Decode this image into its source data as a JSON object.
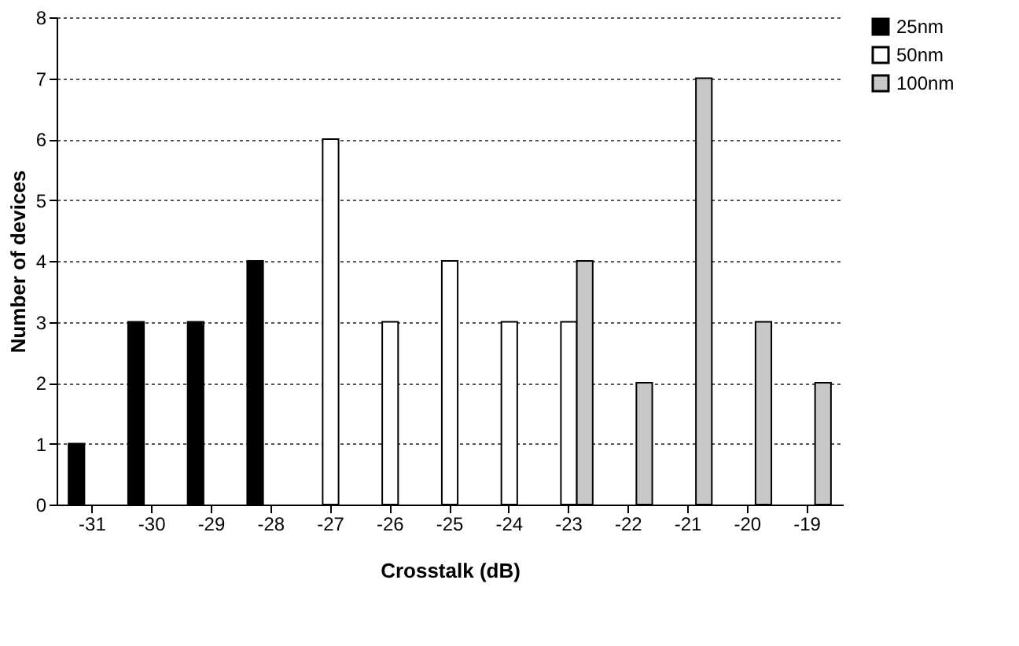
{
  "chart_data": {
    "type": "bar",
    "xlabel": "Crosstalk (dB)",
    "ylabel": "Number of devices",
    "categories": [
      "-31",
      "-30",
      "-29",
      "-28",
      "-27",
      "-26",
      "-25",
      "-24",
      "-23",
      "-22",
      "-21",
      "-20",
      "-19"
    ],
    "series": [
      {
        "name": "25nm",
        "color": "#000000",
        "values": [
          1,
          3,
          3,
          4,
          null,
          null,
          null,
          null,
          null,
          null,
          null,
          null,
          null
        ]
      },
      {
        "name": "50nm",
        "color": "#ffffff",
        "values": [
          null,
          null,
          null,
          null,
          6,
          3,
          4,
          3,
          3,
          null,
          null,
          null,
          null
        ]
      },
      {
        "name": "100nm",
        "color": "#c8c8c8",
        "values": [
          null,
          null,
          null,
          null,
          null,
          null,
          null,
          null,
          4,
          2,
          7,
          3,
          2
        ]
      }
    ],
    "ylim": [
      0,
      8
    ],
    "yticks": [
      0,
      1,
      2,
      3,
      4,
      5,
      6,
      7,
      8
    ],
    "grid": "y",
    "legend": "right"
  }
}
